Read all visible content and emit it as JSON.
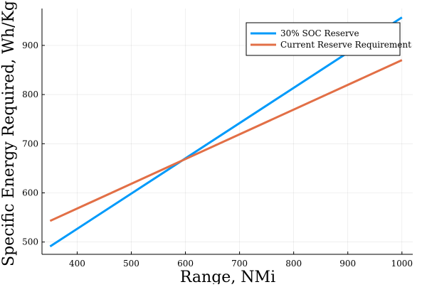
{
  "chart_data": {
    "type": "line",
    "title": "",
    "xlabel": "Range, NMi",
    "ylabel": "Specific Energy Required, Wh/Kg",
    "xlim": [
      335,
      1020
    ],
    "ylim": [
      475,
      975
    ],
    "xticks": [
      400,
      500,
      600,
      700,
      800,
      900,
      1000
    ],
    "yticks": [
      500,
      600,
      700,
      800,
      900
    ],
    "grid": true,
    "legend_position": "top-right",
    "series": [
      {
        "name": "30% SOC Reserve",
        "color": "#009AFA",
        "x": [
          350,
          1000
        ],
        "y": [
          491,
          957
        ]
      },
      {
        "name": "Current Reserve Requirement",
        "color": "#E26F46",
        "x": [
          350,
          1000
        ],
        "y": [
          543,
          870
        ]
      }
    ]
  }
}
